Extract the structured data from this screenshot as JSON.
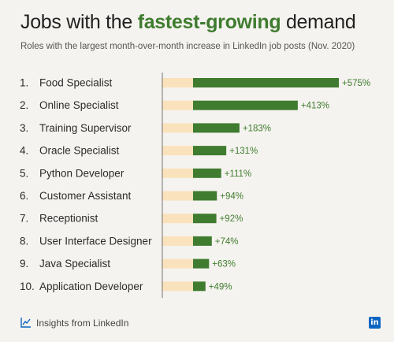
{
  "header": {
    "title_pre": "Jobs with the ",
    "title_highlight": "fastest-growing",
    "title_post": " demand",
    "subtitle": "Roles with the largest month-over-month increase in LinkedIn job posts (Nov. 2020)"
  },
  "footer": {
    "source": "Insights from LinkedIn",
    "logo_text": "in"
  },
  "colors": {
    "bar": "#3f7c2f",
    "background_bar": "#fae2bc",
    "axis": "#888888",
    "label": "#2b2b2b",
    "value_label": "#3f7c2f"
  },
  "chart_data": {
    "type": "bar",
    "orientation": "horizontal",
    "title": "Jobs with the fastest-growing demand",
    "categories": [
      "1.|Food Specialist",
      "2.|Online Specialist",
      "3.|Training Supervisor",
      "4.|Oracle Specialist",
      "5.|Python Developer",
      "6.|Customer Assistant",
      "7.|Receptionist",
      "8.|User Interface Designer",
      "9.|Java Specialist",
      "10.|Application Developer"
    ],
    "values": [
      575,
      413,
      183,
      131,
      111,
      94,
      92,
      74,
      63,
      49
    ],
    "value_labels": [
      "+575%",
      "+413%",
      "+183%",
      "+131%",
      "+111%",
      "+94%",
      "+92%",
      "+74%",
      "+63%",
      "+49%"
    ],
    "unit": "%",
    "grid": false,
    "legend": "none"
  }
}
